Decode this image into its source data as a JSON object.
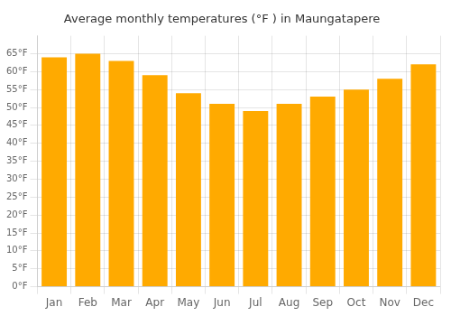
{
  "chart_data": {
    "type": "bar",
    "title": "Average monthly temperatures (°F ) in Maungatapere",
    "categories": [
      "Jan",
      "Feb",
      "Mar",
      "Apr",
      "May",
      "Jun",
      "Jul",
      "Aug",
      "Sep",
      "Oct",
      "Nov",
      "Dec"
    ],
    "values": [
      64,
      65,
      63,
      59,
      54,
      51,
      49,
      51,
      53,
      55,
      58,
      62
    ],
    "color": "#FFAA00",
    "ylim": [
      0,
      70
    ],
    "yticks": [
      {
        "value": 0,
        "label": "0°F"
      },
      {
        "value": 5,
        "label": "5°F"
      },
      {
        "value": 10,
        "label": "10°F"
      },
      {
        "value": 15,
        "label": "15°F"
      },
      {
        "value": 20,
        "label": "20°F"
      },
      {
        "value": 25,
        "label": "25°F"
      },
      {
        "value": 30,
        "label": "30°F"
      },
      {
        "value": 35,
        "label": "35°F"
      },
      {
        "value": 40,
        "label": "40°F"
      },
      {
        "value": 45,
        "label": "45°F"
      },
      {
        "value": 50,
        "label": "50°F"
      },
      {
        "value": 55,
        "label": "55°F"
      },
      {
        "value": 60,
        "label": "60°F"
      },
      {
        "value": 65,
        "label": "65°F"
      }
    ],
    "grid": true
  }
}
